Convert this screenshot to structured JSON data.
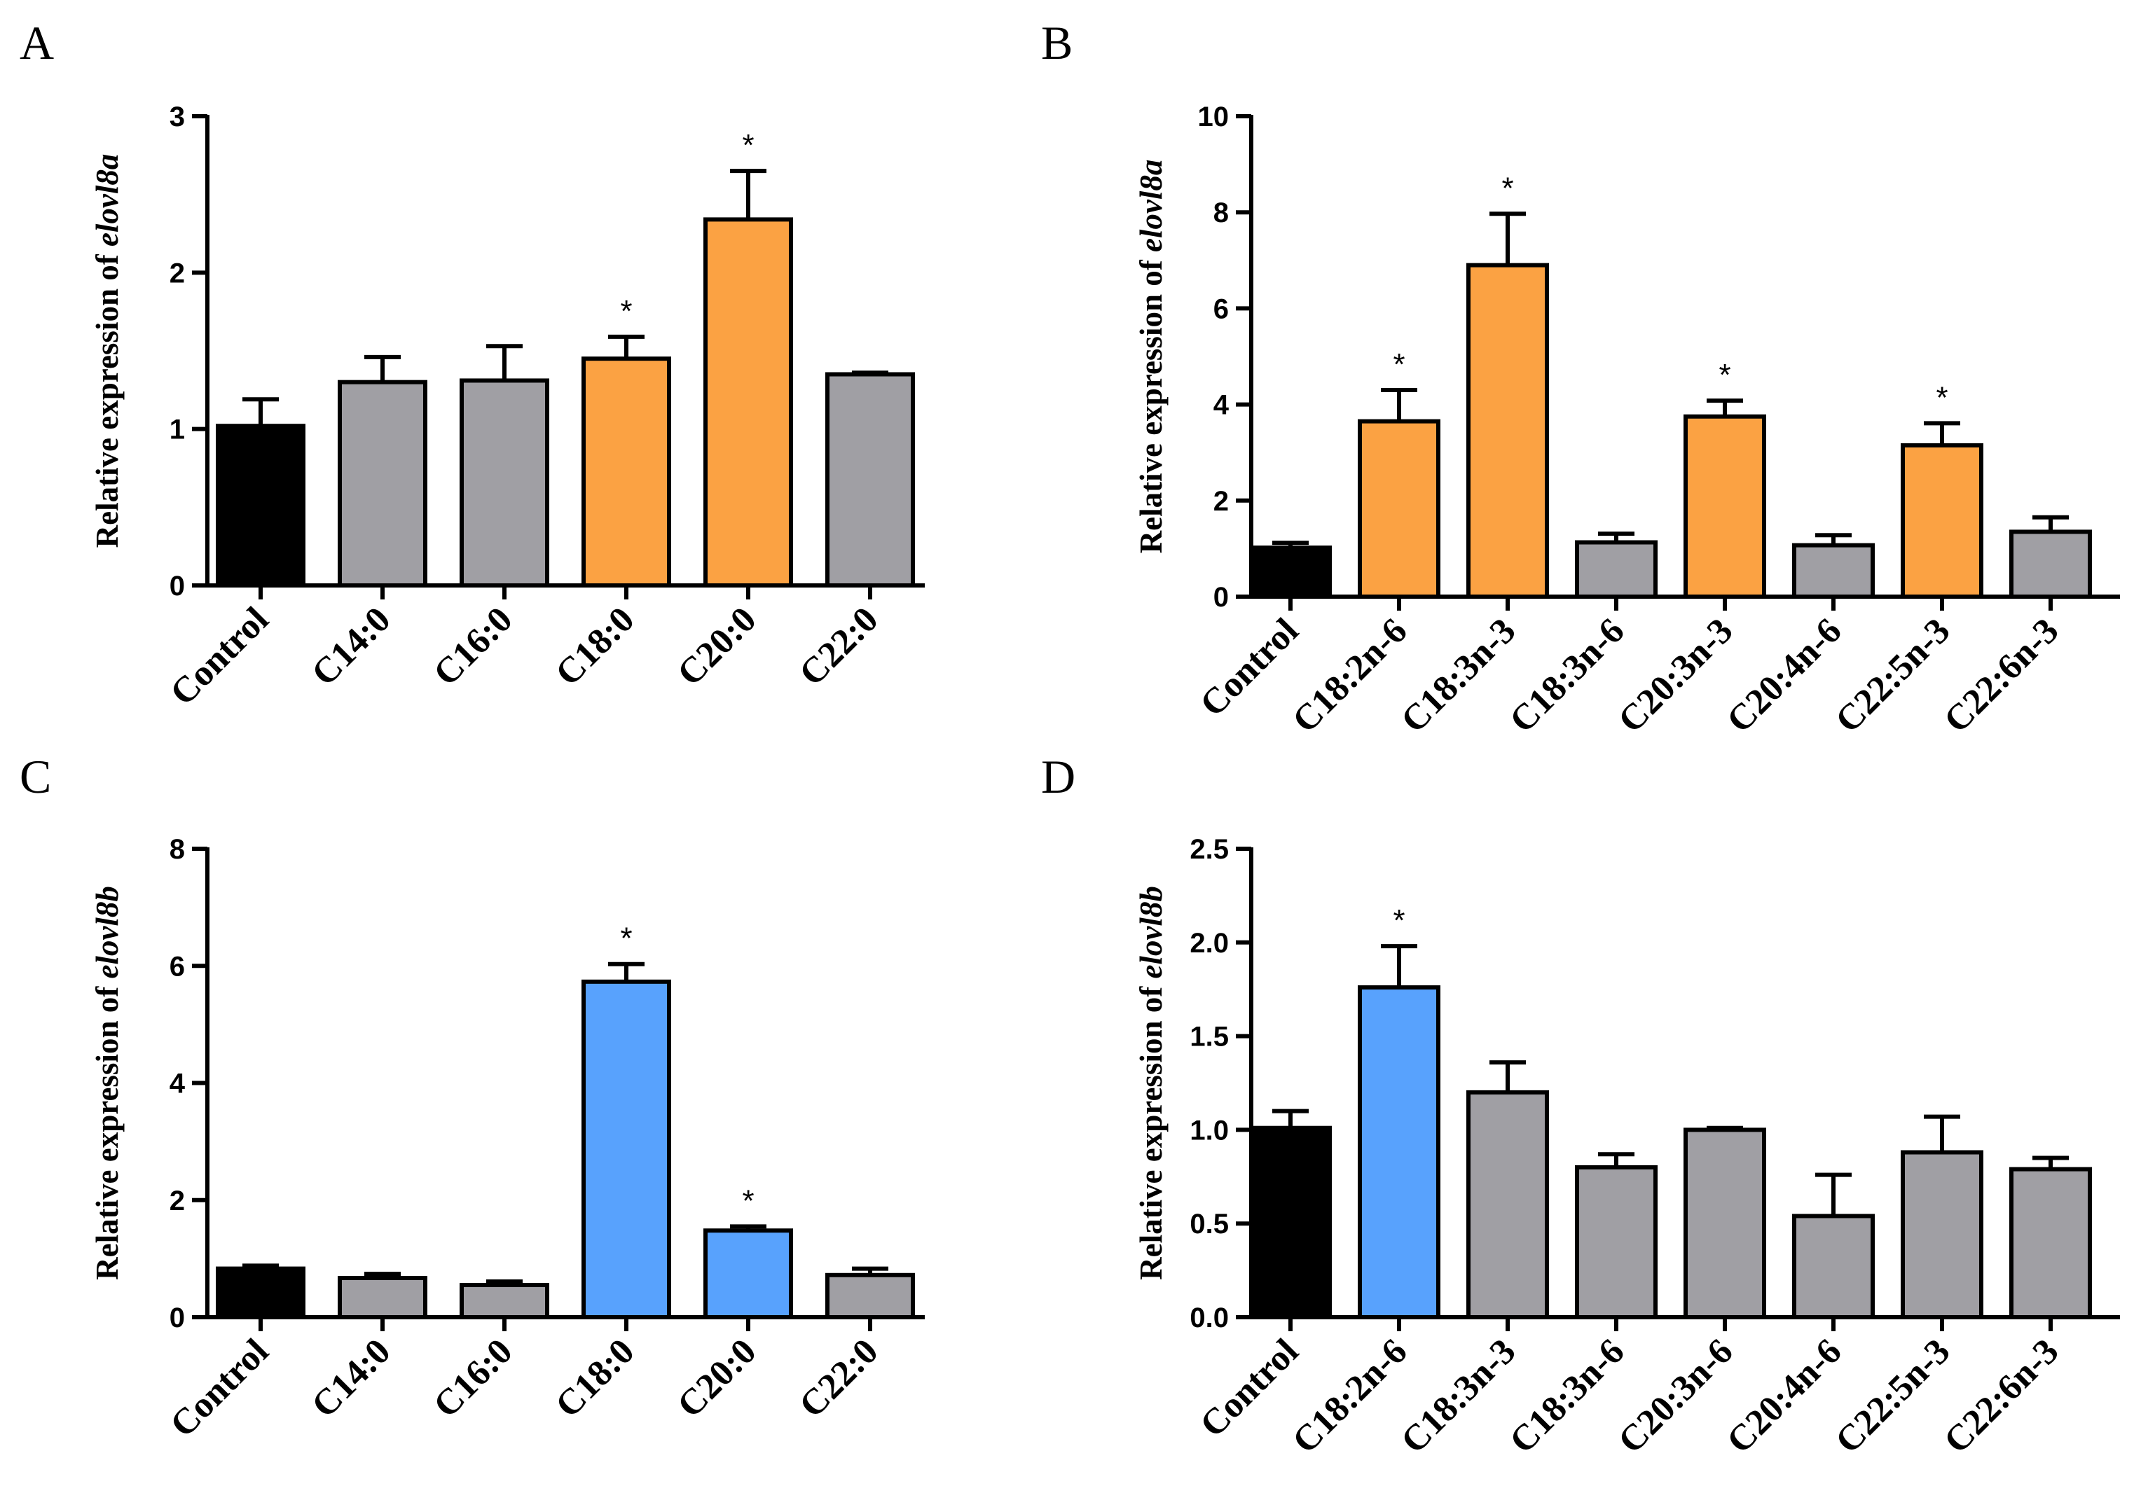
{
  "colors": {
    "control": "#000000",
    "gray": "#a09fa4",
    "orange": "#fba243",
    "blue": "#58a2fd",
    "axis": "#000000"
  },
  "chart_data": [
    {
      "panel": "A",
      "type": "bar",
      "ylabel_prefix": "Relative expression of ",
      "ylabel_gene": "elovl8a",
      "ylim": [
        0,
        3
      ],
      "yticks": [
        "0",
        "1",
        "2",
        "3"
      ],
      "categories": [
        "Control",
        "C14:0",
        "C16:0",
        "C18:0",
        "C20:0",
        "C22:0"
      ],
      "values": [
        1.02,
        1.3,
        1.31,
        1.45,
        2.34,
        1.35
      ],
      "errors": [
        0.17,
        0.16,
        0.22,
        0.14,
        0.31,
        0.01
      ],
      "significant": [
        false,
        false,
        false,
        true,
        true,
        false
      ],
      "fill": [
        "control",
        "gray",
        "gray",
        "orange",
        "orange",
        "gray"
      ],
      "marker": "*"
    },
    {
      "panel": "B",
      "type": "bar",
      "ylabel_prefix": "Relative expression of ",
      "ylabel_gene": "elovl8a",
      "ylim": [
        0,
        10
      ],
      "yticks": [
        "0",
        "2",
        "4",
        "6",
        "8",
        "10"
      ],
      "categories": [
        "Control",
        "C18:2n-6",
        "C18:3n-3",
        "C18:3n-6",
        "C20:3n-3",
        "C20:4n-6",
        "C22:5n-3",
        "C22:6n-3"
      ],
      "values": [
        1.02,
        3.65,
        6.9,
        1.13,
        3.75,
        1.07,
        3.15,
        1.35
      ],
      "errors": [
        0.1,
        0.65,
        1.07,
        0.18,
        0.33,
        0.21,
        0.46,
        0.3
      ],
      "significant": [
        false,
        true,
        true,
        false,
        true,
        false,
        true,
        false
      ],
      "fill": [
        "control",
        "orange",
        "orange",
        "gray",
        "orange",
        "gray",
        "orange",
        "gray"
      ],
      "marker": "*"
    },
    {
      "panel": "C",
      "type": "bar",
      "ylabel_prefix": "Relative expression of ",
      "ylabel_gene": "elovl8b",
      "ylim": [
        0,
        8
      ],
      "yticks": [
        "0",
        "2",
        "4",
        "6",
        "8"
      ],
      "categories": [
        "Control",
        "C14:0",
        "C16:0",
        "C18:0",
        "C20:0",
        "C22:0"
      ],
      "values": [
        0.83,
        0.67,
        0.55,
        5.73,
        1.48,
        0.72
      ],
      "errors": [
        0.05,
        0.07,
        0.06,
        0.3,
        0.07,
        0.11
      ],
      "significant": [
        false,
        false,
        false,
        true,
        true,
        false
      ],
      "fill": [
        "control",
        "gray",
        "gray",
        "blue",
        "blue",
        "gray"
      ],
      "marker": "*"
    },
    {
      "panel": "D",
      "type": "bar",
      "ylabel_prefix": "Relative expression of ",
      "ylabel_gene": "elovl8b",
      "ylim": [
        0,
        2.5
      ],
      "yticks": [
        "0.0",
        "0.5",
        "1.0",
        "1.5",
        "2.0",
        "2.5"
      ],
      "categories": [
        "Control",
        "C18:2n-6",
        "C18:3n-3",
        "C18:3n-6",
        "C20:3n-6",
        "C20:4n-6",
        "C22:5n-3",
        "C22:6n-3"
      ],
      "values": [
        1.01,
        1.76,
        1.2,
        0.8,
        1.0,
        0.54,
        0.88,
        0.79
      ],
      "errors": [
        0.09,
        0.22,
        0.16,
        0.07,
        0.01,
        0.22,
        0.19,
        0.06
      ],
      "significant": [
        false,
        true,
        false,
        false,
        false,
        false,
        false,
        false
      ],
      "fill": [
        "control",
        "blue",
        "gray",
        "gray",
        "gray",
        "gray",
        "gray",
        "gray"
      ],
      "marker": "*"
    }
  ]
}
